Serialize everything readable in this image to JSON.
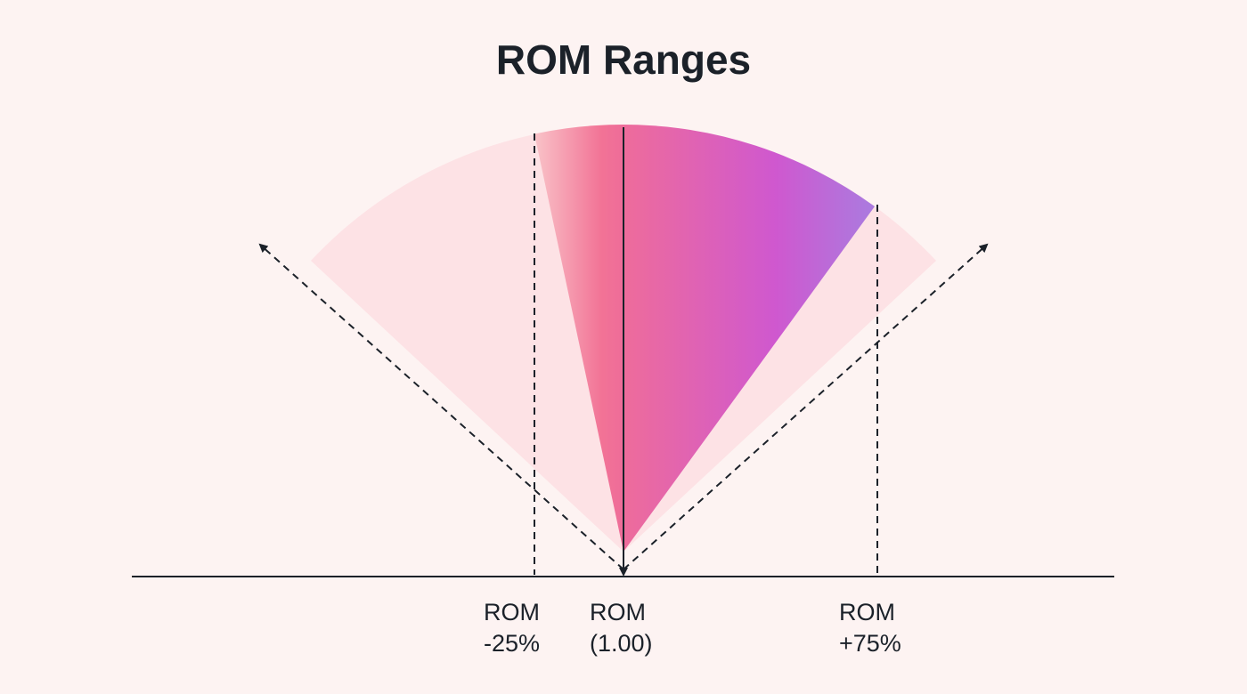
{
  "title": "ROM Ranges",
  "labels": [
    {
      "lines": [
        "ROM",
        "-25%"
      ]
    },
    {
      "lines": [
        "ROM",
        "(1.00)"
      ]
    },
    {
      "lines": [
        "ROM",
        "+75%"
      ]
    }
  ]
}
